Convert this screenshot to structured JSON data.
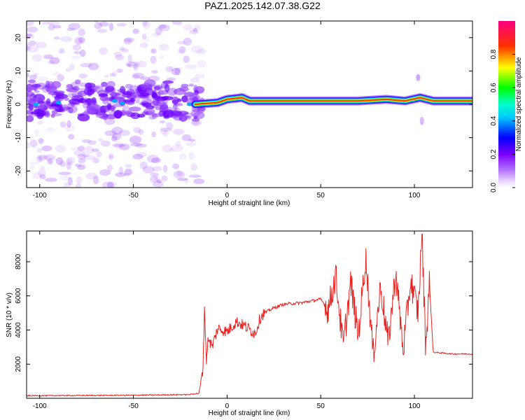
{
  "title": "PAZ1.2025.142.07.38.G22",
  "colors": {
    "snr_line": "#e52421",
    "axis": "#000000",
    "colormap": [
      "#ffffff",
      "#7a00ff",
      "#0000ff",
      "#00ffff",
      "#00ff00",
      "#ffff00",
      "#ff0000",
      "#ff0080"
    ]
  },
  "chart_data": [
    {
      "type": "heatmap",
      "name": "spectrogram",
      "xlabel": "Height of straight line (km)",
      "ylabel": "Frequency (Hz)",
      "xlim": [
        -107,
        131
      ],
      "ylim": [
        -25,
        25
      ],
      "xticks": [
        -100,
        -50,
        0,
        50,
        100
      ],
      "xtick_labels": [
        "-100",
        "-50",
        "0",
        "50",
        "100"
      ],
      "yticks": [
        -20,
        -10,
        0,
        10,
        20
      ],
      "ytick_labels": [
        "-20",
        "-10",
        "0",
        "10",
        "20"
      ],
      "grid": false,
      "ridge_frequency_hz": [
        {
          "x": -17,
          "y": 0.0
        },
        {
          "x": -5,
          "y": 0.5
        },
        {
          "x": 0,
          "y": 1.5
        },
        {
          "x": 8,
          "y": 2.0
        },
        {
          "x": 12,
          "y": 1.0
        },
        {
          "x": 50,
          "y": 1.0
        },
        {
          "x": 70,
          "y": 1.0
        },
        {
          "x": 85,
          "y": 1.5
        },
        {
          "x": 95,
          "y": 1.0
        },
        {
          "x": 103,
          "y": 2.0
        },
        {
          "x": 110,
          "y": 1.0
        },
        {
          "x": 131,
          "y": 1.0
        }
      ],
      "noise_region_x": [
        -107,
        -17
      ],
      "colorbar": {
        "label": "Normalized spectral amplitude",
        "range": [
          0.0,
          1.0
        ],
        "ticks": [
          0.0,
          0.2,
          0.4,
          0.6,
          0.8
        ],
        "tick_labels": [
          "0.0",
          "0.2",
          "0.4",
          "0.6",
          "0.8"
        ]
      }
    },
    {
      "type": "line",
      "name": "snr",
      "xlabel": "Height of straight line (km)",
      "ylabel": "SNR (10 * v/v)",
      "xlim": [
        -107,
        131
      ],
      "ylim": [
        0,
        9800
      ],
      "xticks": [
        -100,
        -50,
        0,
        50,
        100
      ],
      "xtick_labels": [
        "-100",
        "-50",
        "0",
        "50",
        "100"
      ],
      "yticks": [
        2000,
        4000,
        6000,
        8000
      ],
      "ytick_labels": [
        "2000",
        "4000",
        "6000",
        "8000"
      ],
      "grid": false,
      "x": [
        -107,
        -50,
        -20,
        -15,
        -13,
        -12,
        -11,
        -10,
        -8,
        -5,
        0,
        5,
        10,
        15,
        18,
        20,
        25,
        30,
        40,
        50,
        54,
        58,
        62,
        66,
        70,
        74,
        78,
        82,
        86,
        90,
        94,
        98,
        102,
        104,
        106,
        108,
        110,
        115,
        120,
        131
      ],
      "y": [
        150,
        180,
        220,
        300,
        1500,
        5300,
        2200,
        3600,
        3000,
        4100,
        3900,
        4500,
        4200,
        3800,
        4800,
        5000,
        5300,
        5500,
        5600,
        5800,
        5200,
        7200,
        3000,
        6800,
        3600,
        8300,
        2500,
        6600,
        3200,
        7400,
        2800,
        6900,
        5000,
        9800,
        3000,
        6800,
        2700,
        2650,
        2600,
        2600
      ]
    }
  ]
}
